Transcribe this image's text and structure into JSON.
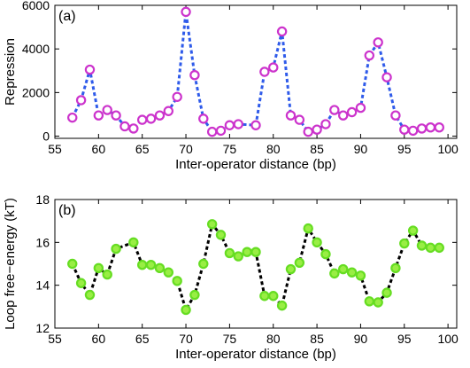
{
  "chart_data": [
    {
      "panel_label": "(a)",
      "type": "line",
      "line_style": "dashed",
      "line_color": "#2f5bea",
      "marker_edge_color": "#cc33cc",
      "marker_face_color": "#ffffff",
      "marker": "circle",
      "xlabel": "Inter-operator distance (bp)",
      "ylabel": "Repression",
      "xlim": [
        55,
        101
      ],
      "ylim": [
        -100,
        6000
      ],
      "xticks": [
        55,
        60,
        65,
        70,
        75,
        80,
        85,
        90,
        95,
        100
      ],
      "yticks": [
        0,
        2000,
        4000,
        6000
      ],
      "grid": false,
      "x": [
        57,
        58,
        59,
        60,
        61,
        62,
        63,
        64,
        65,
        66,
        67,
        68,
        69,
        70,
        71,
        72,
        73,
        74,
        75,
        76,
        78,
        79,
        80,
        81,
        82,
        83,
        84,
        85,
        86,
        87,
        88,
        89,
        90,
        91,
        92,
        93,
        94,
        95,
        96,
        97,
        98,
        99
      ],
      "y": [
        850,
        1650,
        3050,
        950,
        1200,
        950,
        450,
        350,
        750,
        800,
        950,
        1150,
        1800,
        5700,
        2800,
        800,
        200,
        250,
        500,
        550,
        500,
        2950,
        3150,
        4800,
        950,
        750,
        200,
        300,
        550,
        1200,
        950,
        1100,
        1300,
        3700,
        4300,
        2700,
        950,
        300,
        250,
        350,
        400,
        400
      ]
    },
    {
      "panel_label": "(b)",
      "type": "line",
      "line_style": "dashed",
      "line_color": "#000000",
      "marker_edge_color": "#66dd22",
      "marker_face_color": "#99ee44",
      "marker": "circle",
      "xlabel": "Inter-operator distance (bp)",
      "ylabel": "Loop free−energy (kT)",
      "xlim": [
        55,
        101
      ],
      "ylim": [
        12,
        18
      ],
      "xticks": [
        55,
        60,
        65,
        70,
        75,
        80,
        85,
        90,
        95,
        100
      ],
      "yticks": [
        12,
        14,
        16,
        18
      ],
      "grid": false,
      "x": [
        57,
        58,
        59,
        60,
        61,
        62,
        64,
        65,
        66,
        67,
        68,
        69,
        70,
        71,
        72,
        73,
        74,
        75,
        76,
        77,
        78,
        79,
        80,
        81,
        82,
        83,
        84,
        85,
        86,
        87,
        88,
        89,
        90,
        91,
        92,
        93,
        94,
        95,
        96,
        97,
        98,
        99
      ],
      "y": [
        15.0,
        14.1,
        13.55,
        14.8,
        14.5,
        15.7,
        16.0,
        14.95,
        14.95,
        14.8,
        14.6,
        14.2,
        12.85,
        13.55,
        15.0,
        16.85,
        16.35,
        15.5,
        15.35,
        15.55,
        15.55,
        13.5,
        13.5,
        13.05,
        14.75,
        15.05,
        16.65,
        16.0,
        15.45,
        14.55,
        14.75,
        14.6,
        14.45,
        13.25,
        13.2,
        13.65,
        14.8,
        15.95,
        16.55,
        15.85,
        15.75,
        15.75
      ]
    }
  ]
}
